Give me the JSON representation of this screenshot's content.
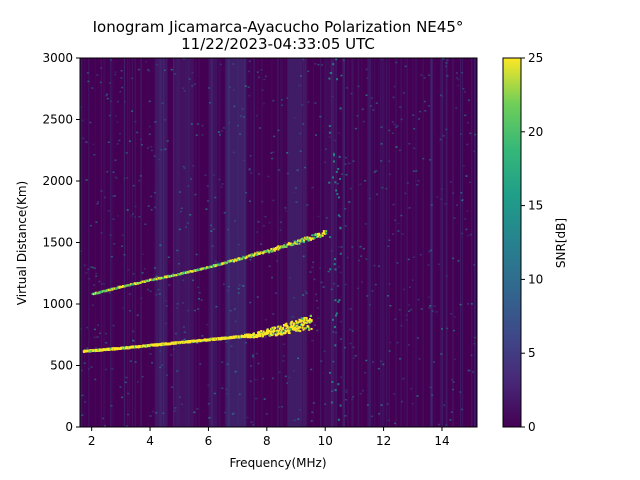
{
  "chart_data": {
    "type": "heatmap",
    "title": "Ionogram Jicamarca-Ayacucho Polarization NE45°",
    "subtitle": "11/22/2023-04:33:05 UTC",
    "xlabel": "Frequency(MHz)",
    "ylabel": "Virtual Distance(Km)",
    "xlim": [
      1.6,
      15.2
    ],
    "ylim": [
      0,
      3000
    ],
    "xticks": [
      2,
      4,
      6,
      8,
      10,
      12,
      14
    ],
    "yticks": [
      0,
      500,
      1000,
      1500,
      2000,
      2500,
      3000
    ],
    "grid": false,
    "colorbar": {
      "label": "SNR[dB]",
      "range": [
        0,
        25
      ],
      "ticks": [
        0,
        5,
        10,
        15,
        20,
        25
      ],
      "colormap": "viridis"
    },
    "traces": [
      {
        "name": "lower trace",
        "points": [
          [
            1.7,
            615
          ],
          [
            3.0,
            640
          ],
          [
            4.5,
            675
          ],
          [
            6.0,
            710
          ],
          [
            7.5,
            745
          ],
          [
            8.5,
            790
          ],
          [
            9.5,
            850
          ]
        ],
        "snr": 25
      },
      {
        "name": "upper trace",
        "points": [
          [
            2.0,
            1080
          ],
          [
            3.0,
            1140
          ],
          [
            4.0,
            1195
          ],
          [
            5.0,
            1245
          ],
          [
            6.0,
            1300
          ],
          [
            7.0,
            1365
          ],
          [
            8.0,
            1430
          ],
          [
            9.0,
            1500
          ],
          [
            10.0,
            1580
          ]
        ],
        "snr": 15
      }
    ]
  },
  "colors": {
    "background": "#440154",
    "high": "#fde725",
    "mid": "#21918c"
  }
}
